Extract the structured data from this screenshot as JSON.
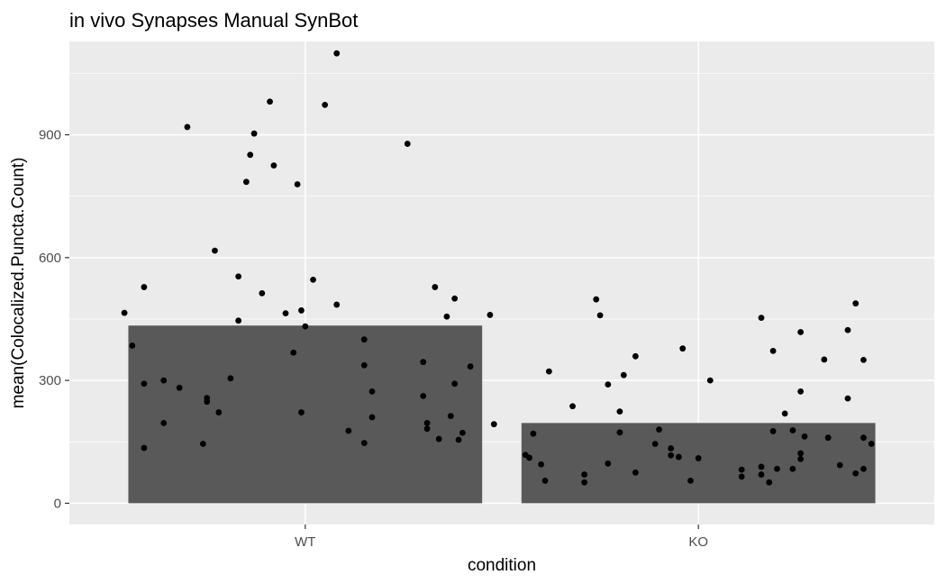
{
  "chart_data": {
    "type": "bar",
    "title": "in vivo Synapses Manual SynBot",
    "xlabel": "condition",
    "ylabel": "mean(Colocalized.Puncta.Count)",
    "categories": [
      "WT",
      "KO"
    ],
    "values": [
      434,
      196
    ],
    "ylim": [
      -52,
      1128
    ],
    "yticks": [
      0,
      300,
      600,
      900
    ],
    "grid": true,
    "legend": "none",
    "colors": {
      "panel": "#ebebeb",
      "grid": "#ffffff",
      "bar": "#595959",
      "point": "#000000"
    },
    "points": [
      {
        "category": "WT",
        "jitter": -0.46,
        "y": 465
      },
      {
        "category": "WT",
        "jitter": -0.44,
        "y": 385
      },
      {
        "category": "WT",
        "jitter": -0.41,
        "y": 528
      },
      {
        "category": "WT",
        "jitter": -0.41,
        "y": 292
      },
      {
        "category": "WT",
        "jitter": -0.41,
        "y": 135
      },
      {
        "category": "WT",
        "jitter": -0.36,
        "y": 300
      },
      {
        "category": "WT",
        "jitter": -0.36,
        "y": 196
      },
      {
        "category": "WT",
        "jitter": -0.32,
        "y": 282
      },
      {
        "category": "WT",
        "jitter": -0.3,
        "y": 919
      },
      {
        "category": "WT",
        "jitter": -0.26,
        "y": 145
      },
      {
        "category": "WT",
        "jitter": -0.25,
        "y": 257
      },
      {
        "category": "WT",
        "jitter": -0.25,
        "y": 248
      },
      {
        "category": "WT",
        "jitter": -0.23,
        "y": 617
      },
      {
        "category": "WT",
        "jitter": -0.22,
        "y": 222
      },
      {
        "category": "WT",
        "jitter": -0.19,
        "y": 305
      },
      {
        "category": "WT",
        "jitter": -0.17,
        "y": 554
      },
      {
        "category": "WT",
        "jitter": -0.17,
        "y": 446
      },
      {
        "category": "WT",
        "jitter": -0.15,
        "y": 785
      },
      {
        "category": "WT",
        "jitter": -0.14,
        "y": 851
      },
      {
        "category": "WT",
        "jitter": -0.13,
        "y": 903
      },
      {
        "category": "WT",
        "jitter": -0.11,
        "y": 513
      },
      {
        "category": "WT",
        "jitter": -0.09,
        "y": 981
      },
      {
        "category": "WT",
        "jitter": -0.08,
        "y": 825
      },
      {
        "category": "WT",
        "jitter": -0.05,
        "y": 464
      },
      {
        "category": "WT",
        "jitter": -0.03,
        "y": 368
      },
      {
        "category": "WT",
        "jitter": -0.02,
        "y": 779
      },
      {
        "category": "WT",
        "jitter": -0.01,
        "y": 471
      },
      {
        "category": "WT",
        "jitter": -0.01,
        "y": 222
      },
      {
        "category": "WT",
        "jitter": 0.0,
        "y": 432
      },
      {
        "category": "WT",
        "jitter": 0.02,
        "y": 546
      },
      {
        "category": "WT",
        "jitter": 0.05,
        "y": 973
      },
      {
        "category": "WT",
        "jitter": 0.08,
        "y": 1099
      },
      {
        "category": "WT",
        "jitter": 0.08,
        "y": 485
      },
      {
        "category": "WT",
        "jitter": 0.11,
        "y": 177
      },
      {
        "category": "WT",
        "jitter": 0.15,
        "y": 400
      },
      {
        "category": "WT",
        "jitter": 0.15,
        "y": 337
      },
      {
        "category": "WT",
        "jitter": 0.15,
        "y": 147
      },
      {
        "category": "WT",
        "jitter": 0.17,
        "y": 273
      },
      {
        "category": "WT",
        "jitter": 0.17,
        "y": 210
      },
      {
        "category": "WT",
        "jitter": 0.26,
        "y": 878
      },
      {
        "category": "WT",
        "jitter": 0.3,
        "y": 345
      },
      {
        "category": "WT",
        "jitter": 0.3,
        "y": 262
      },
      {
        "category": "WT",
        "jitter": 0.31,
        "y": 196
      },
      {
        "category": "WT",
        "jitter": 0.31,
        "y": 182
      },
      {
        "category": "WT",
        "jitter": 0.33,
        "y": 528
      },
      {
        "category": "WT",
        "jitter": 0.34,
        "y": 157
      },
      {
        "category": "WT",
        "jitter": 0.36,
        "y": 456
      },
      {
        "category": "WT",
        "jitter": 0.37,
        "y": 213
      },
      {
        "category": "WT",
        "jitter": 0.38,
        "y": 500
      },
      {
        "category": "WT",
        "jitter": 0.38,
        "y": 292
      },
      {
        "category": "WT",
        "jitter": 0.39,
        "y": 155
      },
      {
        "category": "WT",
        "jitter": 0.4,
        "y": 172
      },
      {
        "category": "WT",
        "jitter": 0.42,
        "y": 334
      },
      {
        "category": "WT",
        "jitter": 0.47,
        "y": 460
      },
      {
        "category": "WT",
        "jitter": 0.48,
        "y": 193
      },
      {
        "category": "KO",
        "jitter": -0.44,
        "y": 118
      },
      {
        "category": "KO",
        "jitter": -0.43,
        "y": 111
      },
      {
        "category": "KO",
        "jitter": -0.42,
        "y": 170
      },
      {
        "category": "KO",
        "jitter": -0.4,
        "y": 95
      },
      {
        "category": "KO",
        "jitter": -0.39,
        "y": 55
      },
      {
        "category": "KO",
        "jitter": -0.38,
        "y": 322
      },
      {
        "category": "KO",
        "jitter": -0.32,
        "y": 237
      },
      {
        "category": "KO",
        "jitter": -0.29,
        "y": 51
      },
      {
        "category": "KO",
        "jitter": -0.29,
        "y": 70
      },
      {
        "category": "KO",
        "jitter": -0.26,
        "y": 498
      },
      {
        "category": "KO",
        "jitter": -0.25,
        "y": 459
      },
      {
        "category": "KO",
        "jitter": -0.23,
        "y": 290
      },
      {
        "category": "KO",
        "jitter": -0.23,
        "y": 97
      },
      {
        "category": "KO",
        "jitter": -0.2,
        "y": 224
      },
      {
        "category": "KO",
        "jitter": -0.2,
        "y": 173
      },
      {
        "category": "KO",
        "jitter": -0.19,
        "y": 313
      },
      {
        "category": "KO",
        "jitter": -0.16,
        "y": 359
      },
      {
        "category": "KO",
        "jitter": -0.16,
        "y": 75
      },
      {
        "category": "KO",
        "jitter": -0.11,
        "y": 145
      },
      {
        "category": "KO",
        "jitter": -0.1,
        "y": 180
      },
      {
        "category": "KO",
        "jitter": -0.07,
        "y": 134
      },
      {
        "category": "KO",
        "jitter": -0.07,
        "y": 117
      },
      {
        "category": "KO",
        "jitter": -0.05,
        "y": 113
      },
      {
        "category": "KO",
        "jitter": -0.04,
        "y": 378
      },
      {
        "category": "KO",
        "jitter": -0.02,
        "y": 55
      },
      {
        "category": "KO",
        "jitter": 0.0,
        "y": 110
      },
      {
        "category": "KO",
        "jitter": 0.03,
        "y": 300
      },
      {
        "category": "KO",
        "jitter": 0.11,
        "y": 65
      },
      {
        "category": "KO",
        "jitter": 0.11,
        "y": 82
      },
      {
        "category": "KO",
        "jitter": 0.16,
        "y": 453
      },
      {
        "category": "KO",
        "jitter": 0.16,
        "y": 70
      },
      {
        "category": "KO",
        "jitter": 0.16,
        "y": 89
      },
      {
        "category": "KO",
        "jitter": 0.18,
        "y": 51
      },
      {
        "category": "KO",
        "jitter": 0.19,
        "y": 372
      },
      {
        "category": "KO",
        "jitter": 0.19,
        "y": 176
      },
      {
        "category": "KO",
        "jitter": 0.2,
        "y": 84
      },
      {
        "category": "KO",
        "jitter": 0.22,
        "y": 219
      },
      {
        "category": "KO",
        "jitter": 0.24,
        "y": 178
      },
      {
        "category": "KO",
        "jitter": 0.24,
        "y": 84
      },
      {
        "category": "KO",
        "jitter": 0.26,
        "y": 273
      },
      {
        "category": "KO",
        "jitter": 0.26,
        "y": 122
      },
      {
        "category": "KO",
        "jitter": 0.26,
        "y": 108
      },
      {
        "category": "KO",
        "jitter": 0.26,
        "y": 418
      },
      {
        "category": "KO",
        "jitter": 0.27,
        "y": 163
      },
      {
        "category": "KO",
        "jitter": 0.32,
        "y": 351
      },
      {
        "category": "KO",
        "jitter": 0.33,
        "y": 160
      },
      {
        "category": "KO",
        "jitter": 0.36,
        "y": 93
      },
      {
        "category": "KO",
        "jitter": 0.38,
        "y": 423
      },
      {
        "category": "KO",
        "jitter": 0.38,
        "y": 256
      },
      {
        "category": "KO",
        "jitter": 0.4,
        "y": 488
      },
      {
        "category": "KO",
        "jitter": 0.4,
        "y": 73
      },
      {
        "category": "KO",
        "jitter": 0.42,
        "y": 350
      },
      {
        "category": "KO",
        "jitter": 0.42,
        "y": 160
      },
      {
        "category": "KO",
        "jitter": 0.42,
        "y": 84
      },
      {
        "category": "KO",
        "jitter": 0.44,
        "y": 145
      }
    ]
  }
}
